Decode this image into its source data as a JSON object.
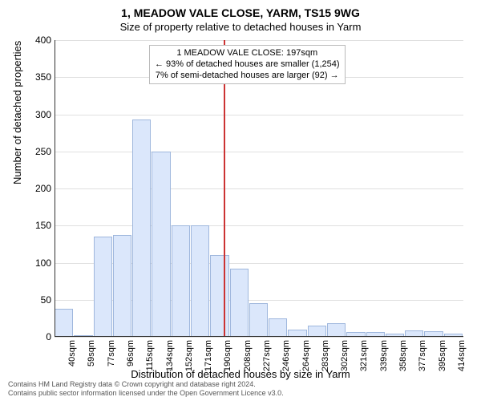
{
  "title_main": "1, MEADOW VALE CLOSE, YARM, TS15 9WG",
  "title_sub": "Size of property relative to detached houses in Yarm",
  "chart": {
    "type": "histogram",
    "ylabel": "Number of detached properties",
    "xlabel": "Distribution of detached houses by size in Yarm",
    "ylim": [
      0,
      400
    ],
    "ytick_step": 50,
    "yticks": [
      0,
      50,
      100,
      150,
      200,
      250,
      300,
      350,
      400
    ],
    "xtick_labels": [
      "40sqm",
      "59sqm",
      "77sqm",
      "96sqm",
      "115sqm",
      "134sqm",
      "152sqm",
      "171sqm",
      "190sqm",
      "208sqm",
      "227sqm",
      "246sqm",
      "264sqm",
      "283sqm",
      "302sqm",
      "321sqm",
      "339sqm",
      "358sqm",
      "377sqm",
      "395sqm",
      "414sqm"
    ],
    "values": [
      38,
      0,
      135,
      137,
      293,
      250,
      150,
      150,
      110,
      92,
      45,
      25,
      10,
      15,
      18,
      6,
      7,
      4,
      9,
      8,
      4
    ],
    "bar_fill": "#dbe7fb",
    "bar_border": "#9fb7dd",
    "background_color": "#ffffff",
    "grid_color": "#e0e0e0",
    "axis_color": "#333333",
    "ref_line_color": "#cc3333",
    "ref_line_bin_index": 8,
    "label_fontsize": 13,
    "tick_fontsize": 12,
    "title_fontsize": 14
  },
  "annotation": {
    "line1": "1 MEADOW VALE CLOSE: 197sqm",
    "line2": "← 93% of detached houses are smaller (1,254)",
    "line3": "7% of semi-detached houses are larger (92) →",
    "border_color": "#bbbbbb",
    "background": "#ffffff",
    "fontsize": 11
  },
  "footer": {
    "line1": "Contains HM Land Registry data © Crown copyright and database right 2024.",
    "line2": "Contains public sector information licensed under the Open Government Licence v3.0."
  }
}
